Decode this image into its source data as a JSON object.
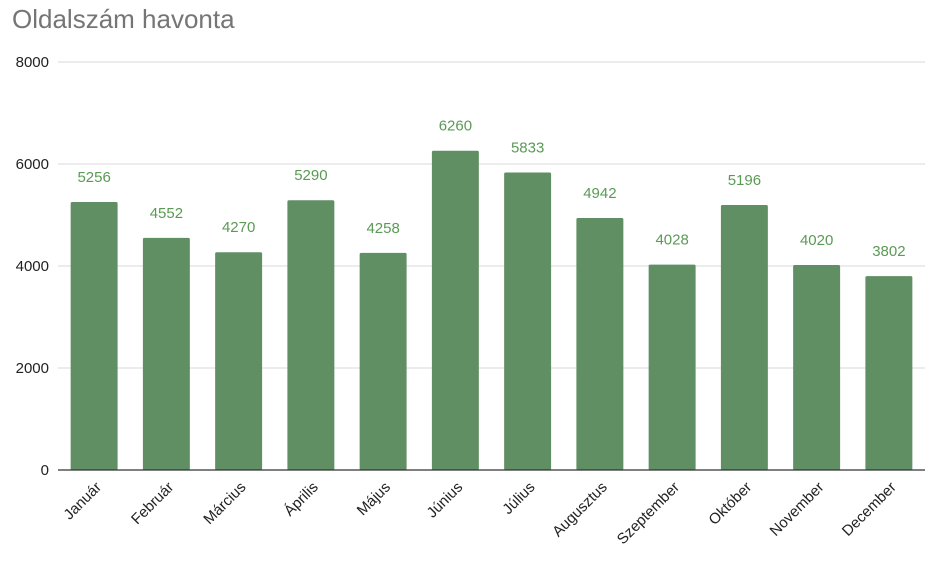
{
  "chart_data": {
    "type": "bar",
    "title": "Oldalszám havonta",
    "xlabel": "",
    "ylabel": "",
    "categories": [
      "Január",
      "Február",
      "Március",
      "Április",
      "Május",
      "Június",
      "Július",
      "Augusztus",
      "Szeptember",
      "Október",
      "November",
      "December"
    ],
    "values": [
      5256,
      4552,
      4270,
      5290,
      4258,
      6260,
      5833,
      4942,
      4028,
      5196,
      4020,
      3802
    ],
    "ylim": [
      0,
      8000
    ],
    "yticks": [
      "0",
      "2000",
      "4000",
      "6000",
      "8000"
    ],
    "grid": true,
    "legend": "none",
    "colors": {
      "bar": "#5f8f63",
      "data_label": "#5a9a55",
      "title": "#757575",
      "grid": "#d9d9d9",
      "axis": "#333333"
    }
  }
}
